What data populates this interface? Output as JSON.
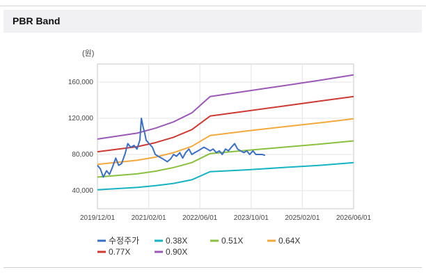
{
  "panel": {
    "title": "PBR Band"
  },
  "chart_data": {
    "type": "line",
    "unit_label": "(원)",
    "x_labels": [
      "2019/12/01",
      "2021/02/01",
      "2022/06/01",
      "2023/10/01",
      "2025/02/01",
      "2026/06/01"
    ],
    "y_ticks": [
      40000,
      80000,
      120000,
      160000
    ],
    "y_tick_labels": [
      "40,000",
      "80,000",
      "120,000",
      "160,000"
    ],
    "ylim": [
      20000,
      180000
    ],
    "xlim": [
      2019.92,
      2026.92
    ],
    "grid": true,
    "legend_position": "bottom",
    "series": [
      {
        "name": "수정주가",
        "color": "#3a6fc4",
        "x": [
          2019.92,
          2020.0,
          2020.08,
          2020.17,
          2020.25,
          2020.33,
          2020.42,
          2020.5,
          2020.58,
          2020.67,
          2020.75,
          2020.83,
          2020.92,
          2021.0,
          2021.08,
          2021.12,
          2021.17,
          2021.21,
          2021.25,
          2021.33,
          2021.42,
          2021.5,
          2021.58,
          2021.67,
          2021.75,
          2021.83,
          2021.92,
          2022.0,
          2022.08,
          2022.17,
          2022.25,
          2022.33,
          2022.42,
          2022.5,
          2022.58,
          2022.67,
          2022.75,
          2022.83,
          2022.92,
          2023.0,
          2023.08,
          2023.17,
          2023.25,
          2023.33,
          2023.42,
          2023.5,
          2023.58,
          2023.67,
          2023.75,
          2023.83,
          2023.92,
          2024.0,
          2024.08,
          2024.17,
          2024.25,
          2024.33,
          2024.42,
          2024.5
        ],
        "values": [
          68000,
          64000,
          55000,
          62000,
          58000,
          66000,
          76000,
          68000,
          70000,
          80000,
          92000,
          88000,
          90000,
          86000,
          96000,
          120000,
          110000,
          104000,
          96000,
          92000,
          88000,
          80000,
          78000,
          76000,
          74000,
          72000,
          75000,
          80000,
          78000,
          82000,
          76000,
          82000,
          86000,
          80000,
          82000,
          84000,
          86000,
          88000,
          86000,
          84000,
          86000,
          82000,
          84000,
          80000,
          86000,
          84000,
          88000,
          92000,
          86000,
          84000,
          82000,
          84000,
          80000,
          84000,
          80000,
          80000,
          80000,
          79000
        ]
      },
      {
        "name": "0.38X",
        "color": "#17b3c0",
        "x": [
          2019.92,
          2021.0,
          2021.5,
          2022.0,
          2022.5,
          2023.0,
          2024.0,
          2025.0,
          2026.0,
          2026.92
        ],
        "values": [
          41000,
          43500,
          45500,
          48000,
          52000,
          61000,
          63000,
          65500,
          68000,
          71000
        ]
      },
      {
        "name": "0.51X",
        "color": "#8bbf3f",
        "x": [
          2019.92,
          2021.0,
          2021.5,
          2022.0,
          2022.5,
          2023.0,
          2024.0,
          2025.0,
          2026.0,
          2026.92
        ],
        "values": [
          55000,
          58500,
          61500,
          65500,
          71000,
          81000,
          84500,
          88000,
          91500,
          95000
        ]
      },
      {
        "name": "0.64X",
        "color": "#f2a93b",
        "x": [
          2019.92,
          2021.0,
          2021.5,
          2022.0,
          2022.5,
          2023.0,
          2024.0,
          2025.0,
          2026.0,
          2026.92
        ],
        "values": [
          69000,
          73500,
          77000,
          82000,
          89000,
          101000,
          106000,
          110500,
          115000,
          119500
        ]
      },
      {
        "name": "0.77X",
        "color": "#cc3a33",
        "x": [
          2019.92,
          2021.0,
          2021.5,
          2022.0,
          2022.5,
          2023.0,
          2024.0,
          2025.0,
          2026.0,
          2026.92
        ],
        "values": [
          83000,
          88500,
          93000,
          99000,
          107500,
          122500,
          128000,
          133500,
          139000,
          144000
        ]
      },
      {
        "name": "0.90X",
        "color": "#9b59b6",
        "x": [
          2019.92,
          2021.0,
          2021.5,
          2022.0,
          2022.5,
          2023.0,
          2024.0,
          2025.0,
          2026.0,
          2026.92
        ],
        "values": [
          97000,
          103500,
          109000,
          116000,
          126000,
          144000,
          150000,
          156000,
          162000,
          168000
        ]
      }
    ]
  }
}
